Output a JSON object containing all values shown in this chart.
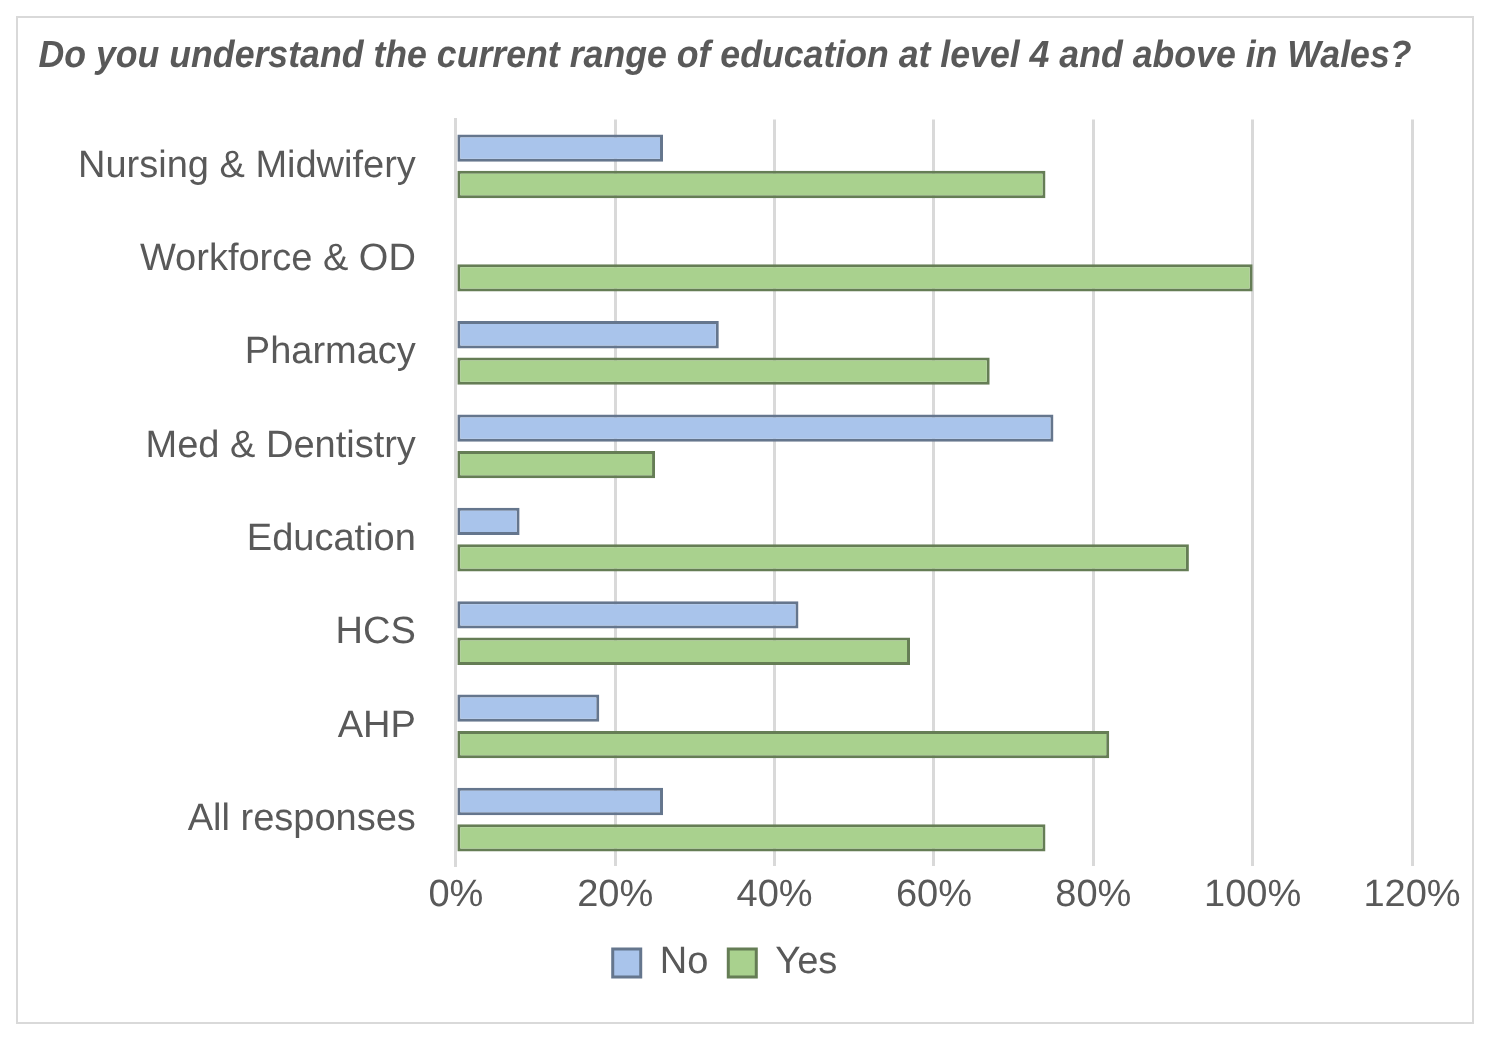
{
  "chart_data": {
    "type": "bar",
    "orientation": "horizontal",
    "title": "Do you understand the current range of education at level 4 and above in Wales?",
    "categories": [
      "Nursing & Midwifery",
      "Workforce & OD",
      "Pharmacy",
      "Med & Dentistry",
      "Education",
      "HCS",
      "AHP",
      "All responses"
    ],
    "series": [
      {
        "name": "No",
        "color": "#a9c4eb",
        "values": [
          26,
          0,
          33,
          75,
          8,
          43,
          18,
          26
        ]
      },
      {
        "name": "Yes",
        "color": "#a9d18e",
        "values": [
          74,
          100,
          67,
          25,
          92,
          57,
          82,
          74
        ]
      }
    ],
    "xlim": [
      0,
      120
    ],
    "xticks": [
      {
        "value": 0,
        "label": "0%"
      },
      {
        "value": 20,
        "label": "20%"
      },
      {
        "value": 40,
        "label": "40%"
      },
      {
        "value": 60,
        "label": "60%"
      },
      {
        "value": 80,
        "label": "80%"
      },
      {
        "value": 100,
        "label": "100%"
      },
      {
        "value": 120,
        "label": "120%"
      }
    ],
    "grid": "x",
    "legend": "bottom"
  }
}
